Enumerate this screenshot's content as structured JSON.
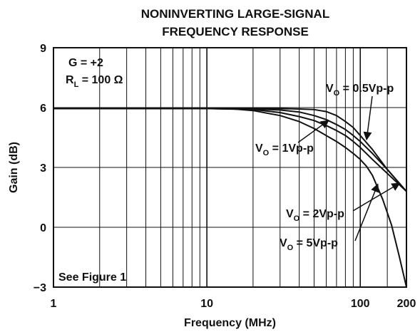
{
  "chart_data": {
    "type": "line",
    "title": [
      "NONINVERTING LARGE-SIGNAL",
      "FREQUENCY RESPONSE"
    ],
    "xlabel": "Frequency (MHz)",
    "ylabel": "Gain (dB)",
    "x_scale": "log",
    "xlim": [
      1,
      200
    ],
    "ylim": [
      -3,
      9
    ],
    "x_ticks": [
      1,
      10,
      100,
      200
    ],
    "x_tick_labels": [
      "1",
      "10",
      "100",
      "200"
    ],
    "y_ticks": [
      -3,
      0,
      3,
      6,
      9
    ],
    "y_tick_labels": [
      "−3",
      "0",
      "3",
      "6",
      "9"
    ],
    "grid": true,
    "conditions": {
      "gain": "G = +2",
      "load_main": "R",
      "load_sub": "L",
      "load_value": " = 100 Ω"
    },
    "note": "See Figure 1",
    "series": [
      {
        "label_main": "V",
        "label_sub": "O",
        "label_value": " = 0.5Vp-p",
        "x": [
          1,
          10,
          20,
          30,
          40,
          50,
          60,
          70,
          80,
          90,
          100,
          120,
          150,
          200
        ],
        "y": [
          5.95,
          5.95,
          5.95,
          5.95,
          5.93,
          5.9,
          5.8,
          5.6,
          5.3,
          5.0,
          4.6,
          3.9,
          2.9,
          1.8
        ]
      },
      {
        "label_main": "V",
        "label_sub": "O",
        "label_value": " = 1Vp-p",
        "x": [
          1,
          10,
          20,
          30,
          40,
          50,
          60,
          70,
          80,
          90,
          100,
          120,
          150,
          200
        ],
        "y": [
          5.95,
          5.95,
          5.93,
          5.88,
          5.78,
          5.6,
          5.4,
          5.15,
          4.9,
          4.6,
          4.3,
          3.7,
          2.9,
          1.8
        ]
      },
      {
        "label_main": "V",
        "label_sub": "O",
        "label_value": " = 2Vp-p",
        "x": [
          1,
          10,
          20,
          30,
          40,
          50,
          60,
          70,
          80,
          90,
          100,
          120,
          150,
          200
        ],
        "y": [
          5.95,
          5.95,
          5.9,
          5.75,
          5.55,
          5.35,
          5.1,
          4.85,
          4.6,
          4.3,
          4.0,
          3.4,
          2.7,
          1.8
        ]
      },
      {
        "label_main": "V",
        "label_sub": "O",
        "label_value": " = 5Vp-p",
        "x": [
          1,
          10,
          15,
          20,
          30,
          40,
          50,
          60,
          70,
          80,
          90,
          100,
          110,
          120,
          140,
          160,
          180,
          200
        ],
        "y": [
          5.95,
          5.95,
          5.93,
          5.85,
          5.6,
          5.3,
          4.95,
          4.6,
          4.3,
          4.0,
          3.7,
          3.4,
          3.05,
          2.6,
          1.4,
          0.1,
          -1.5,
          -3.0
        ]
      }
    ]
  }
}
